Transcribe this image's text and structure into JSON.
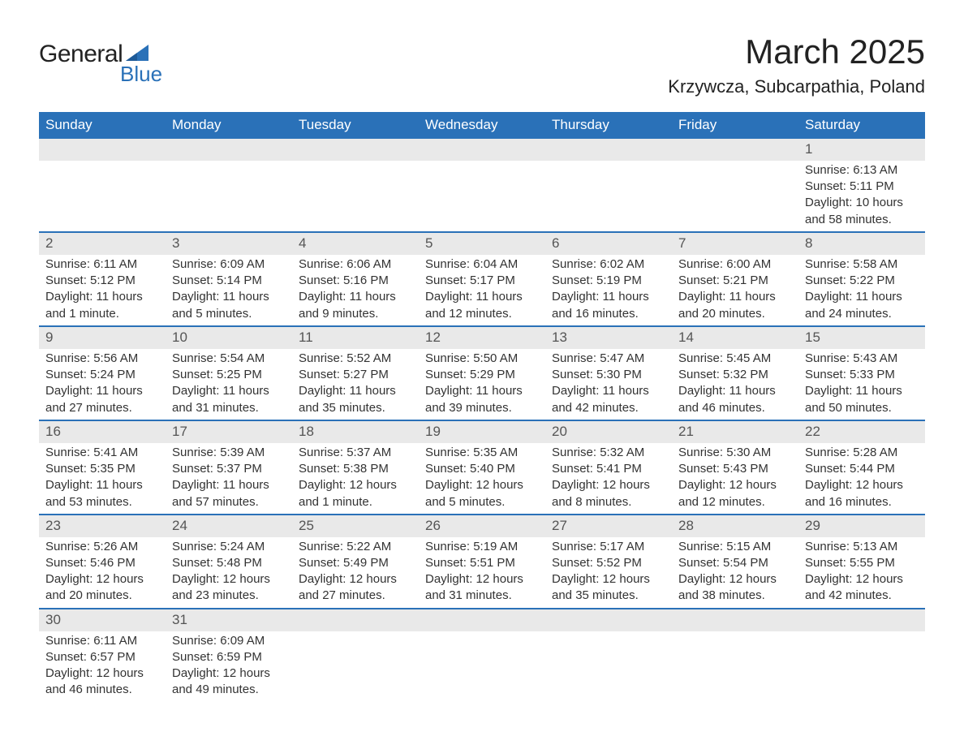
{
  "logo": {
    "general": "General",
    "blue": "Blue"
  },
  "header": {
    "title": "March 2025",
    "location": "Krzywcza, Subcarpathia, Poland"
  },
  "colors": {
    "header_bg": "#2a71b8",
    "header_text": "#ffffff",
    "daynum_bg": "#e9e9e9",
    "border": "#2a71b8",
    "body_text": "#333333",
    "logo_blue": "#2a71b8"
  },
  "calendar": {
    "columns": [
      "Sunday",
      "Monday",
      "Tuesday",
      "Wednesday",
      "Thursday",
      "Friday",
      "Saturday"
    ],
    "weeks": [
      [
        null,
        null,
        null,
        null,
        null,
        null,
        {
          "n": "1",
          "sr": "Sunrise: 6:13 AM",
          "ss": "Sunset: 5:11 PM",
          "d1": "Daylight: 10 hours",
          "d2": "and 58 minutes."
        }
      ],
      [
        {
          "n": "2",
          "sr": "Sunrise: 6:11 AM",
          "ss": "Sunset: 5:12 PM",
          "d1": "Daylight: 11 hours",
          "d2": "and 1 minute."
        },
        {
          "n": "3",
          "sr": "Sunrise: 6:09 AM",
          "ss": "Sunset: 5:14 PM",
          "d1": "Daylight: 11 hours",
          "d2": "and 5 minutes."
        },
        {
          "n": "4",
          "sr": "Sunrise: 6:06 AM",
          "ss": "Sunset: 5:16 PM",
          "d1": "Daylight: 11 hours",
          "d2": "and 9 minutes."
        },
        {
          "n": "5",
          "sr": "Sunrise: 6:04 AM",
          "ss": "Sunset: 5:17 PM",
          "d1": "Daylight: 11 hours",
          "d2": "and 12 minutes."
        },
        {
          "n": "6",
          "sr": "Sunrise: 6:02 AM",
          "ss": "Sunset: 5:19 PM",
          "d1": "Daylight: 11 hours",
          "d2": "and 16 minutes."
        },
        {
          "n": "7",
          "sr": "Sunrise: 6:00 AM",
          "ss": "Sunset: 5:21 PM",
          "d1": "Daylight: 11 hours",
          "d2": "and 20 minutes."
        },
        {
          "n": "8",
          "sr": "Sunrise: 5:58 AM",
          "ss": "Sunset: 5:22 PM",
          "d1": "Daylight: 11 hours",
          "d2": "and 24 minutes."
        }
      ],
      [
        {
          "n": "9",
          "sr": "Sunrise: 5:56 AM",
          "ss": "Sunset: 5:24 PM",
          "d1": "Daylight: 11 hours",
          "d2": "and 27 minutes."
        },
        {
          "n": "10",
          "sr": "Sunrise: 5:54 AM",
          "ss": "Sunset: 5:25 PM",
          "d1": "Daylight: 11 hours",
          "d2": "and 31 minutes."
        },
        {
          "n": "11",
          "sr": "Sunrise: 5:52 AM",
          "ss": "Sunset: 5:27 PM",
          "d1": "Daylight: 11 hours",
          "d2": "and 35 minutes."
        },
        {
          "n": "12",
          "sr": "Sunrise: 5:50 AM",
          "ss": "Sunset: 5:29 PM",
          "d1": "Daylight: 11 hours",
          "d2": "and 39 minutes."
        },
        {
          "n": "13",
          "sr": "Sunrise: 5:47 AM",
          "ss": "Sunset: 5:30 PM",
          "d1": "Daylight: 11 hours",
          "d2": "and 42 minutes."
        },
        {
          "n": "14",
          "sr": "Sunrise: 5:45 AM",
          "ss": "Sunset: 5:32 PM",
          "d1": "Daylight: 11 hours",
          "d2": "and 46 minutes."
        },
        {
          "n": "15",
          "sr": "Sunrise: 5:43 AM",
          "ss": "Sunset: 5:33 PM",
          "d1": "Daylight: 11 hours",
          "d2": "and 50 minutes."
        }
      ],
      [
        {
          "n": "16",
          "sr": "Sunrise: 5:41 AM",
          "ss": "Sunset: 5:35 PM",
          "d1": "Daylight: 11 hours",
          "d2": "and 53 minutes."
        },
        {
          "n": "17",
          "sr": "Sunrise: 5:39 AM",
          "ss": "Sunset: 5:37 PM",
          "d1": "Daylight: 11 hours",
          "d2": "and 57 minutes."
        },
        {
          "n": "18",
          "sr": "Sunrise: 5:37 AM",
          "ss": "Sunset: 5:38 PM",
          "d1": "Daylight: 12 hours",
          "d2": "and 1 minute."
        },
        {
          "n": "19",
          "sr": "Sunrise: 5:35 AM",
          "ss": "Sunset: 5:40 PM",
          "d1": "Daylight: 12 hours",
          "d2": "and 5 minutes."
        },
        {
          "n": "20",
          "sr": "Sunrise: 5:32 AM",
          "ss": "Sunset: 5:41 PM",
          "d1": "Daylight: 12 hours",
          "d2": "and 8 minutes."
        },
        {
          "n": "21",
          "sr": "Sunrise: 5:30 AM",
          "ss": "Sunset: 5:43 PM",
          "d1": "Daylight: 12 hours",
          "d2": "and 12 minutes."
        },
        {
          "n": "22",
          "sr": "Sunrise: 5:28 AM",
          "ss": "Sunset: 5:44 PM",
          "d1": "Daylight: 12 hours",
          "d2": "and 16 minutes."
        }
      ],
      [
        {
          "n": "23",
          "sr": "Sunrise: 5:26 AM",
          "ss": "Sunset: 5:46 PM",
          "d1": "Daylight: 12 hours",
          "d2": "and 20 minutes."
        },
        {
          "n": "24",
          "sr": "Sunrise: 5:24 AM",
          "ss": "Sunset: 5:48 PM",
          "d1": "Daylight: 12 hours",
          "d2": "and 23 minutes."
        },
        {
          "n": "25",
          "sr": "Sunrise: 5:22 AM",
          "ss": "Sunset: 5:49 PM",
          "d1": "Daylight: 12 hours",
          "d2": "and 27 minutes."
        },
        {
          "n": "26",
          "sr": "Sunrise: 5:19 AM",
          "ss": "Sunset: 5:51 PM",
          "d1": "Daylight: 12 hours",
          "d2": "and 31 minutes."
        },
        {
          "n": "27",
          "sr": "Sunrise: 5:17 AM",
          "ss": "Sunset: 5:52 PM",
          "d1": "Daylight: 12 hours",
          "d2": "and 35 minutes."
        },
        {
          "n": "28",
          "sr": "Sunrise: 5:15 AM",
          "ss": "Sunset: 5:54 PM",
          "d1": "Daylight: 12 hours",
          "d2": "and 38 minutes."
        },
        {
          "n": "29",
          "sr": "Sunrise: 5:13 AM",
          "ss": "Sunset: 5:55 PM",
          "d1": "Daylight: 12 hours",
          "d2": "and 42 minutes."
        }
      ],
      [
        {
          "n": "30",
          "sr": "Sunrise: 6:11 AM",
          "ss": "Sunset: 6:57 PM",
          "d1": "Daylight: 12 hours",
          "d2": "and 46 minutes."
        },
        {
          "n": "31",
          "sr": "Sunrise: 6:09 AM",
          "ss": "Sunset: 6:59 PM",
          "d1": "Daylight: 12 hours",
          "d2": "and 49 minutes."
        },
        null,
        null,
        null,
        null,
        null
      ]
    ]
  }
}
